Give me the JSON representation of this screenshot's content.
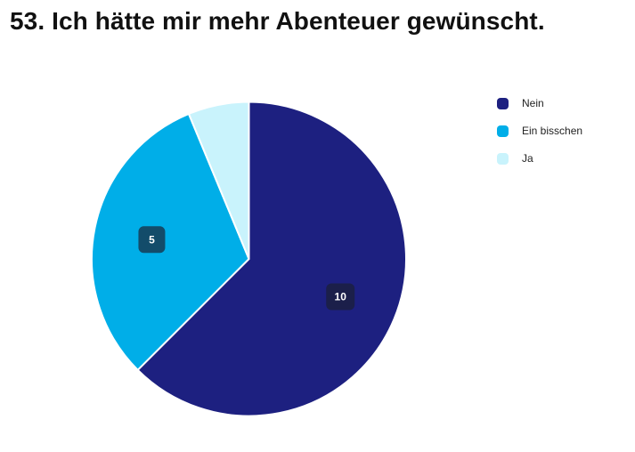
{
  "question": {
    "title": "53. Ich hätte mir mehr Abenteuer gewünscht."
  },
  "chart_data": {
    "type": "pie",
    "title": "53. Ich hätte mir mehr Abenteuer gewünscht.",
    "categories": [
      "Nein",
      "Ein bisschen",
      "Ja"
    ],
    "values": [
      10,
      5,
      1
    ],
    "colors": [
      "#1d2080",
      "#00aee8",
      "#c9f3fc"
    ],
    "data_labels": [
      "10",
      "5",
      ""
    ],
    "label_box_colors": [
      "#1b1f4a",
      "#134c6a",
      ""
    ],
    "legend_position": "right",
    "start_angle_deg": 0,
    "direction": "clockwise"
  }
}
